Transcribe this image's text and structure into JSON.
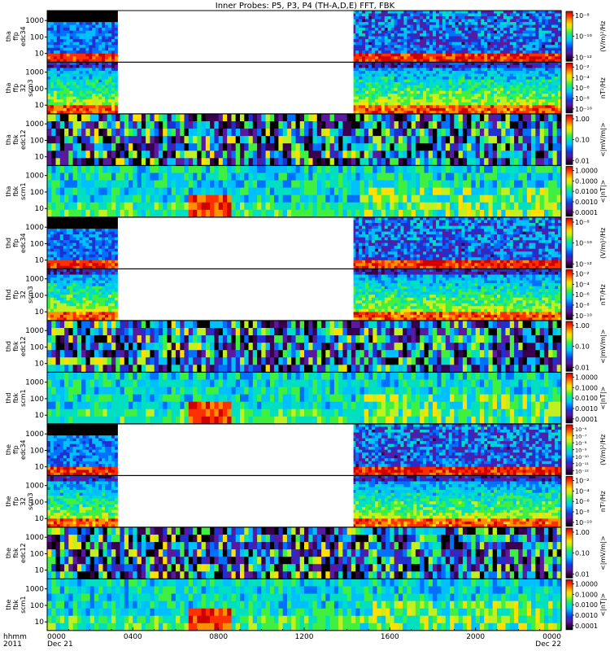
{
  "chart_data": {
    "type": "heatmap",
    "title": "Inner Probes: P5, P3, P4 (TH-A,D,E) FFT, FBK",
    "x_axis": {
      "tick_labels": [
        "0000",
        "0400",
        "0800",
        "1200",
        "1600",
        "2000",
        "0000"
      ],
      "hours": [
        0,
        4,
        8,
        12,
        16,
        20,
        24
      ],
      "date_labels": [
        "Dec 21",
        "Dec 22"
      ],
      "row_labels": [
        "hhmm",
        "2011"
      ],
      "range_hours": [
        0,
        24
      ]
    },
    "gap_hours": {
      "ffp": [
        3.3,
        14.3
      ]
    },
    "panels": [
      {
        "label": [
          "tha",
          "ffp",
          "edc34"
        ],
        "kind": "ffp_e",
        "cbar_label": "(V/m)²/Hz",
        "cbar_ticks": [
          "10⁻⁸",
          "10⁻¹⁰",
          "10⁻¹²"
        ],
        "cbar_exponents": [
          -8,
          -10,
          -12
        ]
      },
      {
        "label": [
          "tha",
          "ffp",
          "32",
          "scm3"
        ],
        "kind": "ffp_b",
        "cbar_label": "nT²/Hz",
        "cbar_ticks": [
          "10⁻²",
          "10⁻⁴",
          "10⁻⁶",
          "10⁻⁸",
          "10⁻¹⁰"
        ],
        "cbar_exponents": [
          -2,
          -4,
          -6,
          -8,
          -10
        ]
      },
      {
        "label": [
          "tha",
          "fbk",
          "edc12"
        ],
        "kind": "fbk_e",
        "cbar_label": "<|mV/m|>",
        "cbar_ticks": [
          "1.00",
          "0.10",
          "0.01"
        ]
      },
      {
        "label": [
          "tha",
          "fbk",
          "scm1"
        ],
        "kind": "fbk_b",
        "cbar_label": "<|nT|>",
        "cbar_ticks": [
          "1.0000",
          "0.1000",
          "0.0100",
          "0.0010",
          "0.0001"
        ]
      },
      {
        "label": [
          "thd",
          "ffp",
          "edc34"
        ],
        "kind": "ffp_e",
        "cbar_label": "(V/m)²/Hz",
        "cbar_ticks": [
          "10⁻⁸",
          "10⁻¹⁰",
          "10⁻¹²"
        ],
        "cbar_exponents": [
          -8,
          -10,
          -12
        ]
      },
      {
        "label": [
          "thd",
          "ffp",
          "32",
          "scm3"
        ],
        "kind": "ffp_b",
        "cbar_label": "nT²/Hz",
        "cbar_ticks": [
          "10⁻²",
          "10⁻⁴",
          "10⁻⁶",
          "10⁻⁸",
          "10⁻¹⁰"
        ],
        "cbar_exponents": [
          -2,
          -4,
          -6,
          -8,
          -10
        ]
      },
      {
        "label": [
          "thd",
          "fbk",
          "edc12"
        ],
        "kind": "fbk_e",
        "cbar_label": "<|mV/m|>",
        "cbar_ticks": [
          "1.00",
          "0.10",
          "0.01"
        ]
      },
      {
        "label": [
          "thd",
          "fbk",
          "scm1"
        ],
        "kind": "fbk_b",
        "cbar_label": "<|nT|>",
        "cbar_ticks": [
          "1.0000",
          "0.1000",
          "0.0100",
          "0.0010",
          "0.0001"
        ]
      },
      {
        "label": [
          "the",
          "ffp",
          "edc34"
        ],
        "kind": "ffp_e",
        "cbar_label": "(V/m)²/Hz",
        "cbar_ticks": [
          "10⁻⁶",
          "10⁻⁷",
          "10⁻⁸",
          "10⁻⁹",
          "10⁻¹⁰",
          "10⁻¹¹",
          "10⁻¹²"
        ],
        "cbar_exponents": [
          -6,
          -7,
          -8,
          -9,
          -10,
          -11,
          -12
        ]
      },
      {
        "label": [
          "the",
          "ffp",
          "32",
          "scm3"
        ],
        "kind": "ffp_b",
        "cbar_label": "nT²/Hz",
        "cbar_ticks": [
          "10⁻²",
          "10⁻⁴",
          "10⁻⁶",
          "10⁻⁸",
          "10⁻¹⁰"
        ],
        "cbar_exponents": [
          -2,
          -4,
          -6,
          -8,
          -10
        ]
      },
      {
        "label": [
          "the",
          "fbk",
          "edc12"
        ],
        "kind": "fbk_e",
        "cbar_label": "<|mV/m|>",
        "cbar_ticks": [
          "1.00",
          "0.10",
          "0.01"
        ]
      },
      {
        "label": [
          "the",
          "fbk",
          "scm1"
        ],
        "kind": "fbk_b",
        "cbar_label": "<|nT|>",
        "cbar_ticks": [
          "1.0000",
          "0.1000",
          "0.0100",
          "0.0010",
          "0.0001"
        ]
      }
    ],
    "y_ticks": [
      "1000",
      "100",
      "10"
    ],
    "y_tick_values": [
      1000,
      100,
      10
    ],
    "y_range_hz": [
      3,
      4000
    ],
    "y_scale": "log",
    "colormap": [
      "#000000",
      "#3a0050",
      "#5a1aa0",
      "#2030d0",
      "#0070ff",
      "#00c0ff",
      "#00e0c0",
      "#40f040",
      "#c0f020",
      "#ffe000",
      "#ff9000",
      "#ff3000",
      "#d00000"
    ]
  }
}
